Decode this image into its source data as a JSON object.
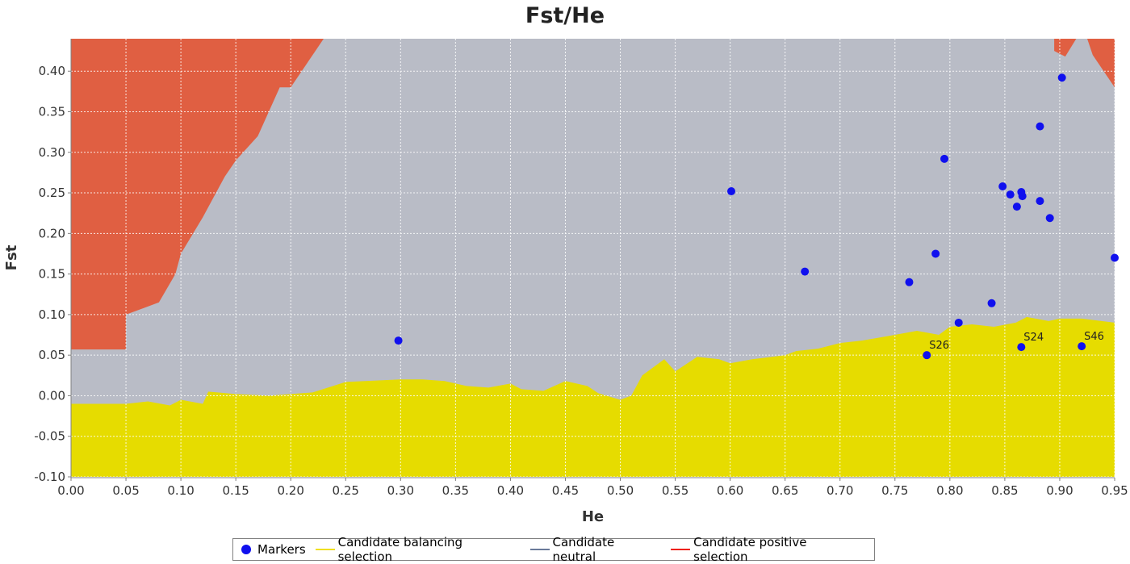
{
  "chart_data": {
    "type": "area",
    "title": "Fst/He",
    "xlabel": "He",
    "ylabel": "Fst",
    "xlim": [
      0.0,
      0.95
    ],
    "ylim": [
      -0.1,
      0.44
    ],
    "x_ticks": [
      "0.00",
      "0.05",
      "0.10",
      "0.15",
      "0.20",
      "0.25",
      "0.30",
      "0.35",
      "0.40",
      "0.45",
      "0.50",
      "0.55",
      "0.60",
      "0.65",
      "0.70",
      "0.75",
      "0.80",
      "0.85",
      "0.90",
      "0.95"
    ],
    "y_ticks": [
      "-0.10",
      "-0.05",
      "0.00",
      "0.05",
      "0.10",
      "0.15",
      "0.20",
      "0.25",
      "0.30",
      "0.35",
      "0.40"
    ],
    "grid": true,
    "legend_position": "bottom",
    "colors": {
      "balancing": "#e6dc00",
      "neutral": "#b9bcc6",
      "positive": "#e05f42",
      "markers": "#1010ee"
    },
    "regions": {
      "balancing_upper": [
        [
          0.0,
          -0.01
        ],
        [
          0.05,
          -0.01
        ],
        [
          0.07,
          -0.007
        ],
        [
          0.09,
          -0.012
        ],
        [
          0.1,
          -0.005
        ],
        [
          0.12,
          -0.01
        ],
        [
          0.125,
          0.005
        ],
        [
          0.15,
          0.002
        ],
        [
          0.18,
          0.0
        ],
        [
          0.22,
          0.004
        ],
        [
          0.25,
          0.017
        ],
        [
          0.3,
          0.02
        ],
        [
          0.32,
          0.02
        ],
        [
          0.34,
          0.018
        ],
        [
          0.36,
          0.012
        ],
        [
          0.38,
          0.01
        ],
        [
          0.4,
          0.015
        ],
        [
          0.41,
          0.008
        ],
        [
          0.43,
          0.006
        ],
        [
          0.45,
          0.018
        ],
        [
          0.47,
          0.012
        ],
        [
          0.48,
          0.003
        ],
        [
          0.5,
          -0.005
        ],
        [
          0.51,
          0.0
        ],
        [
          0.52,
          0.025
        ],
        [
          0.54,
          0.045
        ],
        [
          0.55,
          0.03
        ],
        [
          0.57,
          0.048
        ],
        [
          0.59,
          0.045
        ],
        [
          0.6,
          0.04
        ],
        [
          0.62,
          0.045
        ],
        [
          0.65,
          0.05
        ],
        [
          0.66,
          0.055
        ],
        [
          0.68,
          0.058
        ],
        [
          0.7,
          0.065
        ],
        [
          0.72,
          0.068
        ],
        [
          0.75,
          0.075
        ],
        [
          0.77,
          0.08
        ],
        [
          0.79,
          0.075
        ],
        [
          0.8,
          0.085
        ],
        [
          0.82,
          0.088
        ],
        [
          0.84,
          0.085
        ],
        [
          0.86,
          0.09
        ],
        [
          0.87,
          0.097
        ],
        [
          0.89,
          0.092
        ],
        [
          0.9,
          0.095
        ],
        [
          0.92,
          0.095
        ],
        [
          0.95,
          0.09
        ]
      ],
      "positive_left": [
        [
          0.0,
          0.44
        ],
        [
          0.0,
          0.057
        ],
        [
          0.05,
          0.057
        ],
        [
          0.05,
          0.1
        ],
        [
          0.06,
          0.105
        ],
        [
          0.08,
          0.115
        ],
        [
          0.095,
          0.15
        ],
        [
          0.1,
          0.175
        ],
        [
          0.12,
          0.22
        ],
        [
          0.14,
          0.27
        ],
        [
          0.15,
          0.29
        ],
        [
          0.17,
          0.32
        ],
        [
          0.19,
          0.38
        ],
        [
          0.2,
          0.38
        ],
        [
          0.22,
          0.42
        ],
        [
          0.23,
          0.44
        ]
      ],
      "positive_right": [
        [
          0.895,
          0.44
        ],
        [
          0.895,
          0.425
        ],
        [
          0.905,
          0.418
        ],
        [
          0.915,
          0.44
        ],
        [
          0.925,
          0.44
        ],
        [
          0.93,
          0.42
        ],
        [
          0.94,
          0.4
        ],
        [
          0.95,
          0.38
        ],
        [
          0.95,
          0.44
        ]
      ]
    },
    "series": [
      {
        "name": "Markers",
        "type": "scatter",
        "points": [
          {
            "x": 0.298,
            "y": 0.068,
            "label": ""
          },
          {
            "x": 0.601,
            "y": 0.252,
            "label": ""
          },
          {
            "x": 0.668,
            "y": 0.153,
            "label": ""
          },
          {
            "x": 0.763,
            "y": 0.14,
            "label": ""
          },
          {
            "x": 0.779,
            "y": 0.05,
            "label": "S26"
          },
          {
            "x": 0.787,
            "y": 0.175,
            "label": ""
          },
          {
            "x": 0.795,
            "y": 0.292,
            "label": ""
          },
          {
            "x": 0.808,
            "y": 0.09,
            "label": ""
          },
          {
            "x": 0.838,
            "y": 0.114,
            "label": ""
          },
          {
            "x": 0.848,
            "y": 0.258,
            "label": ""
          },
          {
            "x": 0.855,
            "y": 0.248,
            "label": ""
          },
          {
            "x": 0.861,
            "y": 0.233,
            "label": ""
          },
          {
            "x": 0.865,
            "y": 0.251,
            "label": ""
          },
          {
            "x": 0.866,
            "y": 0.246,
            "label": ""
          },
          {
            "x": 0.865,
            "y": 0.06,
            "label": "S24"
          },
          {
            "x": 0.882,
            "y": 0.332,
            "label": ""
          },
          {
            "x": 0.882,
            "y": 0.24,
            "label": ""
          },
          {
            "x": 0.891,
            "y": 0.219,
            "label": ""
          },
          {
            "x": 0.902,
            "y": 0.392,
            "label": ""
          },
          {
            "x": 0.92,
            "y": 0.061,
            "label": "S46"
          },
          {
            "x": 0.95,
            "y": 0.17,
            "label": ""
          }
        ]
      }
    ],
    "legend": [
      {
        "label": "Markers",
        "kind": "dot",
        "color": "#1010ee"
      },
      {
        "label": "Candidate balancing selection",
        "kind": "line",
        "color": "#f0e020"
      },
      {
        "label": "Candidate neutral",
        "kind": "line",
        "color": "#6a7a9a"
      },
      {
        "label": "Candidate positive selection",
        "kind": "line",
        "color": "#ee2010"
      }
    ]
  }
}
